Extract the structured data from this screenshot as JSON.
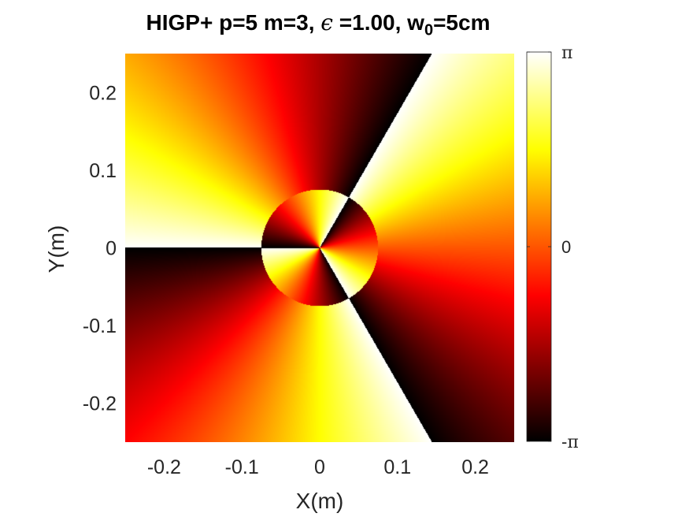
{
  "chart_data": {
    "type": "heatmap",
    "title": {
      "prefix": "HIGP+ p=5 m=3, ",
      "epsilon_symbol": "ϵ",
      "epsilon_part": " =1.00, w",
      "subscript": "0",
      "suffix": "=5cm"
    },
    "xlabel": "X(m)",
    "ylabel": "Y(m)",
    "xlim": [
      -0.25,
      0.25
    ],
    "ylim": [
      -0.25,
      0.25
    ],
    "xticks": [
      -0.2,
      -0.1,
      0,
      0.1,
      0.2
    ],
    "xtick_labels": [
      "-0.2",
      "-0.1",
      "0",
      "0.1",
      "0.2"
    ],
    "yticks": [
      0.2,
      0.1,
      0,
      -0.1,
      -0.2
    ],
    "ytick_labels": [
      "0.2",
      "0.1",
      "0",
      "-0.1",
      "-0.2"
    ],
    "colormap": "hot",
    "colorbar": {
      "range": [
        -3.14159,
        3.14159
      ],
      "ticks": [
        {
          "value": 3.14159,
          "minus": "",
          "symbol": "π"
        },
        {
          "value": 0,
          "minus": "",
          "symbol": "0"
        },
        {
          "value": -3.14159,
          "minus": "-",
          "symbol": "π"
        }
      ]
    },
    "field": {
      "quantity": "phase",
      "topological_charge": 3,
      "inner_disk_radius": 0.075,
      "inner_topological_charge": -3
    }
  }
}
